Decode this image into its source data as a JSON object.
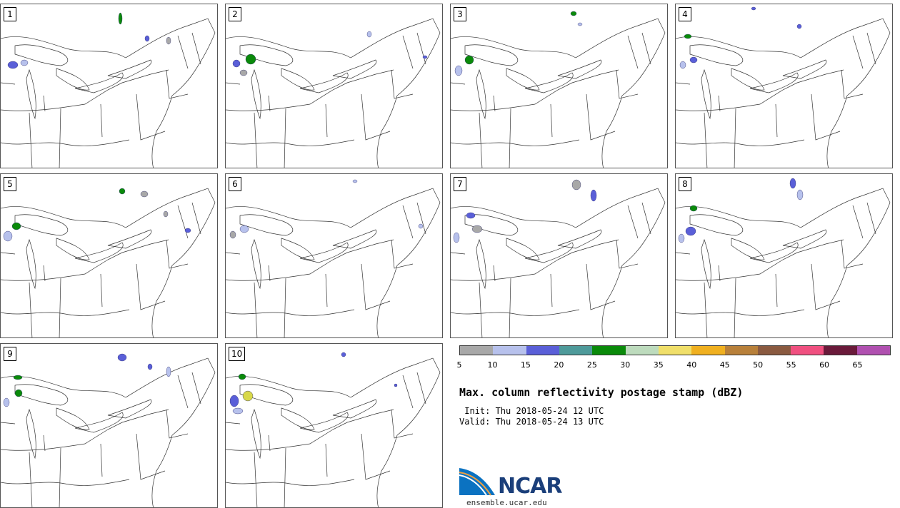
{
  "panels": [
    {
      "label": "1",
      "echoes": [
        [
          10,
          80,
          14,
          10,
          "#5a5fd8"
        ],
        [
          28,
          78,
          10,
          8,
          "#b7c1ec"
        ],
        [
          165,
          12,
          5,
          16,
          "#0a8a0a"
        ],
        [
          202,
          44,
          6,
          8,
          "#5a5fd8"
        ],
        [
          232,
          46,
          6,
          10,
          "#a8a8a8"
        ]
      ]
    },
    {
      "label": "2",
      "echoes": [
        [
          28,
          70,
          14,
          14,
          "#0a8a0a"
        ],
        [
          10,
          78,
          10,
          10,
          "#5a5fd8"
        ],
        [
          20,
          92,
          10,
          8,
          "#a8a8a8"
        ],
        [
          198,
          38,
          6,
          8,
          "#b7c1ec"
        ],
        [
          276,
          72,
          6,
          4,
          "#5a5fd8"
        ]
      ]
    },
    {
      "label": "3",
      "echoes": [
        [
          20,
          72,
          12,
          12,
          "#0a8a0a"
        ],
        [
          6,
          86,
          10,
          14,
          "#b7c1ec"
        ],
        [
          168,
          10,
          8,
          6,
          "#0a8a0a"
        ],
        [
          178,
          26,
          6,
          4,
          "#b7c1ec"
        ]
      ]
    },
    {
      "label": "4",
      "echoes": [
        [
          12,
          42,
          10,
          6,
          "#0a8a0a"
        ],
        [
          20,
          74,
          10,
          8,
          "#5a5fd8"
        ],
        [
          6,
          80,
          8,
          10,
          "#b7c1ec"
        ],
        [
          106,
          4,
          6,
          4,
          "#5a5fd8"
        ],
        [
          170,
          28,
          6,
          6,
          "#5a5fd8"
        ]
      ]
    },
    {
      "label": "5",
      "echoes": [
        [
          16,
          68,
          12,
          10,
          "#0a8a0a"
        ],
        [
          4,
          80,
          12,
          14,
          "#b7c1ec"
        ],
        [
          166,
          20,
          8,
          8,
          "#0a8a0a"
        ],
        [
          196,
          24,
          10,
          8,
          "#a8a8a8"
        ],
        [
          228,
          52,
          6,
          8,
          "#a8a8a8"
        ],
        [
          258,
          76,
          8,
          6,
          "#5a5fd8"
        ]
      ]
    },
    {
      "label": "6",
      "echoes": [
        [
          20,
          72,
          12,
          10,
          "#b7c1ec"
        ],
        [
          6,
          80,
          8,
          10,
          "#a8a8a8"
        ],
        [
          178,
          8,
          6,
          4,
          "#b7c1ec"
        ],
        [
          270,
          70,
          6,
          6,
          "#b7c1ec"
        ]
      ]
    },
    {
      "label": "7",
      "echoes": [
        [
          170,
          8,
          12,
          14,
          "#a8a8a8"
        ],
        [
          196,
          22,
          8,
          16,
          "#5a5fd8"
        ],
        [
          22,
          54,
          12,
          8,
          "#5a5fd8"
        ],
        [
          30,
          72,
          14,
          10,
          "#a8a8a8"
        ],
        [
          4,
          82,
          8,
          14,
          "#b7c1ec"
        ]
      ]
    },
    {
      "label": "8",
      "echoes": [
        [
          160,
          6,
          8,
          14,
          "#5a5fd8"
        ],
        [
          170,
          22,
          8,
          14,
          "#b7c1ec"
        ],
        [
          20,
          44,
          10,
          8,
          "#0a8a0a"
        ],
        [
          14,
          74,
          14,
          12,
          "#5a5fd8"
        ],
        [
          4,
          84,
          8,
          12,
          "#b7c1ec"
        ]
      ]
    },
    {
      "label": "9",
      "echoes": [
        [
          18,
          44,
          12,
          6,
          "#0a8a0a"
        ],
        [
          20,
          64,
          10,
          10,
          "#0a8a0a"
        ],
        [
          4,
          76,
          8,
          12,
          "#b7c1ec"
        ],
        [
          164,
          14,
          12,
          10,
          "#5a5fd8"
        ],
        [
          206,
          28,
          6,
          8,
          "#5a5fd8"
        ],
        [
          232,
          32,
          6,
          14,
          "#b7c1ec"
        ]
      ]
    },
    {
      "label": "10",
      "echoes": [
        [
          18,
          42,
          10,
          8,
          "#0a8a0a"
        ],
        [
          24,
          66,
          14,
          14,
          "#d8d84a"
        ],
        [
          6,
          72,
          12,
          16,
          "#5a5fd8"
        ],
        [
          10,
          90,
          14,
          8,
          "#b7c1ec"
        ],
        [
          162,
          12,
          6,
          6,
          "#5a5fd8"
        ],
        [
          236,
          56,
          4,
          4,
          "#5a5fd8"
        ]
      ]
    }
  ],
  "colorbar": {
    "colors": [
      "#a8a8a8",
      "#b7c1ec",
      "#5a5fd8",
      "#4e9a9a",
      "#0a8a0a",
      "#bddbbd",
      "#f0df6a",
      "#f0b020",
      "#b8803a",
      "#8a5a40",
      "#f05080",
      "#6a1a3a",
      "#b050b0"
    ],
    "ticks": [
      "5",
      "10",
      "15",
      "20",
      "25",
      "30",
      "35",
      "40",
      "45",
      "50",
      "55",
      "60",
      "65"
    ]
  },
  "title": "Max. column reflectivity postage stamp (dBZ)",
  "init": " Init: Thu 2018-05-24 12 UTC",
  "valid": "Valid: Thu 2018-05-24 13 UTC",
  "logo_text": "NCAR",
  "site": "ensemble.ucar.edu"
}
